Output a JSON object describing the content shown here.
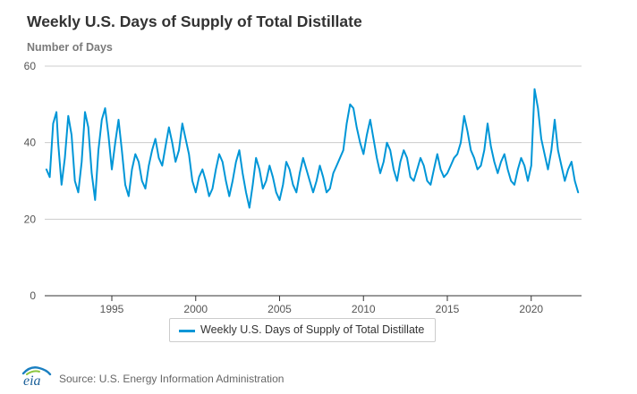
{
  "header": {
    "title": "Weekly U.S. Days of Supply of Total Distillate",
    "subtitle": "Number of Days"
  },
  "legend": {
    "label": "Weekly U.S. Days of Supply of Total Distillate"
  },
  "footer": {
    "logo_text": "eia",
    "source": "Source: U.S. Energy Information Administration"
  },
  "colors": {
    "series": "#0096d7",
    "grid": "#cccccc",
    "axis": "#333333"
  },
  "chart_data": {
    "type": "line",
    "title": "Weekly U.S. Days of Supply of Total Distillate",
    "ylabel": "Number of Days",
    "xlabel": "",
    "xlim": [
      1991.0,
      2023.0
    ],
    "ylim": [
      0,
      60
    ],
    "yticks": [
      0,
      20,
      40,
      60
    ],
    "xticks": [
      1995,
      2000,
      2005,
      2010,
      2015,
      2020
    ],
    "grid": "horizontal",
    "legend_position": "bottom-center",
    "series": [
      {
        "name": "Weekly U.S. Days of Supply of Total Distillate",
        "color": "#0096d7",
        "x": [
          1991.1,
          1991.3,
          1991.5,
          1991.7,
          1991.8,
          1992.0,
          1992.2,
          1992.4,
          1992.6,
          1992.8,
          1993.0,
          1993.2,
          1993.4,
          1993.6,
          1993.8,
          1994.0,
          1994.2,
          1994.4,
          1994.6,
          1994.8,
          1995.0,
          1995.2,
          1995.4,
          1995.6,
          1995.8,
          1996.0,
          1996.2,
          1996.4,
          1996.6,
          1996.8,
          1997.0,
          1997.2,
          1997.4,
          1997.6,
          1997.8,
          1998.0,
          1998.2,
          1998.4,
          1998.6,
          1998.8,
          1999.0,
          1999.2,
          1999.4,
          1999.6,
          1999.8,
          2000.0,
          2000.2,
          2000.4,
          2000.6,
          2000.8,
          2001.0,
          2001.2,
          2001.4,
          2001.6,
          2001.8,
          2002.0,
          2002.2,
          2002.4,
          2002.6,
          2002.8,
          2003.0,
          2003.2,
          2003.4,
          2003.6,
          2003.8,
          2004.0,
          2004.2,
          2004.4,
          2004.6,
          2004.8,
          2005.0,
          2005.2,
          2005.4,
          2005.6,
          2005.8,
          2006.0,
          2006.2,
          2006.4,
          2006.6,
          2006.8,
          2007.0,
          2007.2,
          2007.4,
          2007.6,
          2007.8,
          2008.0,
          2008.2,
          2008.4,
          2008.6,
          2008.8,
          2009.0,
          2009.2,
          2009.4,
          2009.6,
          2009.8,
          2010.0,
          2010.2,
          2010.4,
          2010.6,
          2010.8,
          2011.0,
          2011.2,
          2011.4,
          2011.6,
          2011.8,
          2012.0,
          2012.2,
          2012.4,
          2012.6,
          2012.8,
          2013.0,
          2013.2,
          2013.4,
          2013.6,
          2013.8,
          2014.0,
          2014.2,
          2014.4,
          2014.6,
          2014.8,
          2015.0,
          2015.2,
          2015.4,
          2015.6,
          2015.8,
          2016.0,
          2016.2,
          2016.4,
          2016.6,
          2016.8,
          2017.0,
          2017.2,
          2017.4,
          2017.6,
          2017.8,
          2018.0,
          2018.2,
          2018.4,
          2018.6,
          2018.8,
          2019.0,
          2019.2,
          2019.4,
          2019.6,
          2019.8,
          2020.0,
          2020.2,
          2020.4,
          2020.6,
          2020.8,
          2021.0,
          2021.2,
          2021.4,
          2021.6,
          2021.8,
          2022.0,
          2022.2,
          2022.4,
          2022.6,
          2022.8
        ],
        "values": [
          33,
          31,
          45,
          48,
          40,
          29,
          36,
          47,
          42,
          30,
          27,
          35,
          48,
          44,
          32,
          25,
          38,
          46,
          49,
          42,
          33,
          40,
          46,
          38,
          29,
          26,
          33,
          37,
          35,
          30,
          28,
          34,
          38,
          41,
          36,
          34,
          39,
          44,
          40,
          35,
          38,
          45,
          41,
          37,
          30,
          27,
          31,
          33,
          30,
          26,
          28,
          33,
          37,
          35,
          30,
          26,
          30,
          35,
          38,
          32,
          27,
          23,
          29,
          36,
          33,
          28,
          30,
          34,
          31,
          27,
          25,
          29,
          35,
          33,
          29,
          27,
          32,
          36,
          33,
          30,
          27,
          30,
          34,
          31,
          27,
          28,
          32,
          34,
          36,
          38,
          45,
          50,
          49,
          44,
          40,
          37,
          42,
          46,
          41,
          36,
          32,
          35,
          40,
          38,
          33,
          30,
          35,
          38,
          36,
          31,
          30,
          33,
          36,
          34,
          30,
          29,
          33,
          37,
          33,
          31,
          32,
          34,
          36,
          37,
          40,
          47,
          43,
          38,
          36,
          33,
          34,
          38,
          45,
          39,
          35,
          32,
          35,
          37,
          33,
          30,
          29,
          33,
          36,
          34,
          30,
          34,
          54,
          49,
          41,
          37,
          33,
          38,
          46,
          38,
          34,
          30,
          33,
          35,
          30,
          27
        ]
      }
    ]
  }
}
